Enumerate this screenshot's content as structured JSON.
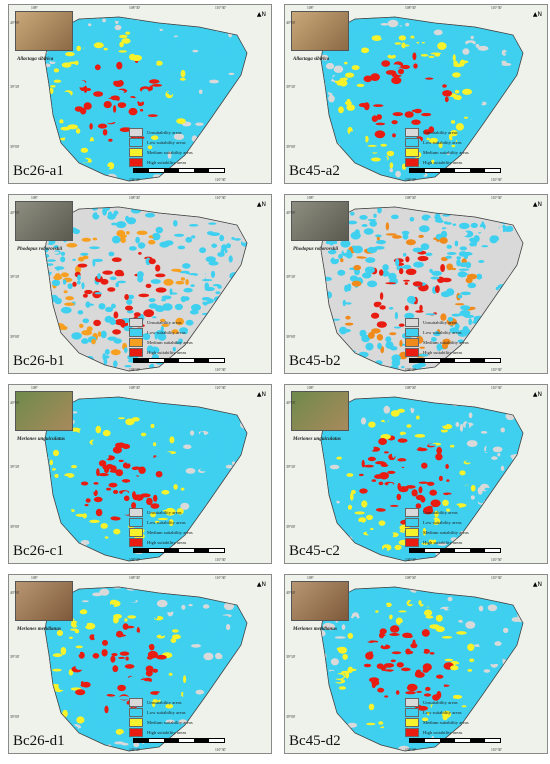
{
  "legend": [
    {
      "label": "Unsuitability areas",
      "color": "#d9d9d9"
    },
    {
      "label": "Low suitability areas",
      "color": "#3fd0f0"
    },
    {
      "label": "Medium suitability areas",
      "color": "#f7f22a"
    },
    {
      "label": "High suitability areas",
      "color": "#e81c10"
    }
  ],
  "coords": {
    "top_left": "108°",
    "top_mid": "108°30'",
    "top_right": "110°30'",
    "left_top": "40°00'",
    "left_mid": "39°30'",
    "left_bot": "39°00'",
    "bottom_mid": "108°30'",
    "bottom_right": "110°30'"
  },
  "panels": [
    {
      "label": "Bc26-a1",
      "species": "Allactaga sibirica",
      "high_color": "#e81c10",
      "mid_color": "#f7f22a"
    },
    {
      "label": "Bc45-a2",
      "species": "Allactaga sibirica",
      "high_color": "#e81c10",
      "mid_color": "#f7f22a"
    },
    {
      "label": "Bc26-b1",
      "species": "Phodopus roborovskii",
      "high_color": "#e81c10",
      "mid_color": "#f7a020"
    },
    {
      "label": "Bc45-b2",
      "species": "Phodopus roborovskii",
      "high_color": "#e81c10",
      "mid_color": "#f08a1a"
    },
    {
      "label": "Bc26-c1",
      "species": "Meriones unguiculatus",
      "high_color": "#e81c10",
      "mid_color": "#f7f22a"
    },
    {
      "label": "Bc45-c2",
      "species": "Meriones unguiculatus",
      "high_color": "#e81c10",
      "mid_color": "#f7f22a"
    },
    {
      "label": "Bc26-d1",
      "species": "Meriones meridianus",
      "high_color": "#e81c10",
      "mid_color": "#f7f22a"
    },
    {
      "label": "Bc45-d2",
      "species": "Meriones meridianus",
      "high_color": "#e81c10",
      "mid_color": "#f7f22a"
    }
  ]
}
